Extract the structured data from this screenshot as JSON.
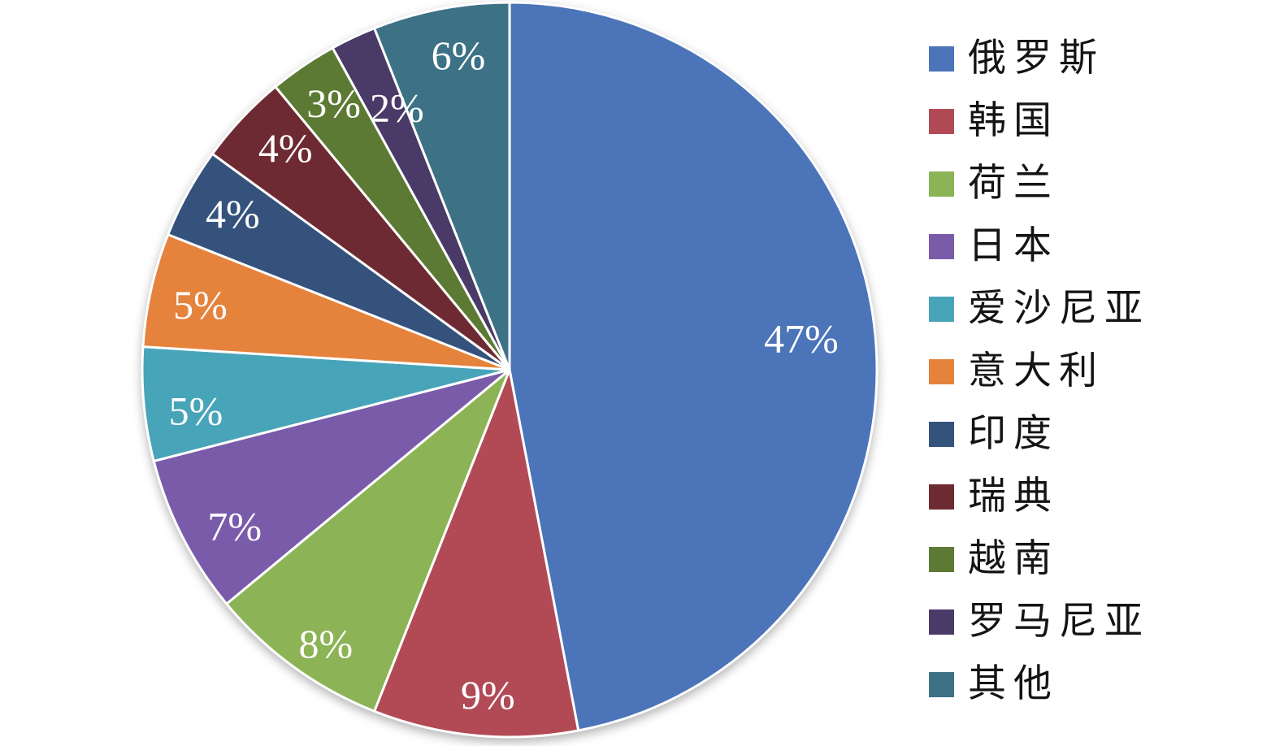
{
  "page": {
    "background": "#FFFFFF"
  },
  "chart_data": {
    "type": "pie",
    "title": "",
    "legend_position": "right",
    "start_angle_deg": 0,
    "direction": "clockwise",
    "grid": false,
    "data_label_format": "percent",
    "data_label_color": "#FFFFFF",
    "categories": [
      "俄罗斯",
      "韩国",
      "荷兰",
      "日本",
      "爱沙尼亚",
      "意大利",
      "印度",
      "瑞典",
      "越南",
      "罗马尼亚",
      "其他"
    ],
    "values": [
      47,
      9,
      8,
      7,
      5,
      5,
      4,
      4,
      3,
      2,
      6
    ],
    "data_labels": [
      "47%",
      "9%",
      "8%",
      "7%",
      "5%",
      "5%",
      "4%",
      "4%",
      "3%",
      "2%",
      "6%"
    ],
    "colors": [
      "#4B74B9",
      "#B24A56",
      "#8CB355",
      "#7A5BA9",
      "#48A4B8",
      "#E5823C",
      "#35527C",
      "#6E2A32",
      "#5C7A33",
      "#4A3A67",
      "#3D7286"
    ]
  }
}
